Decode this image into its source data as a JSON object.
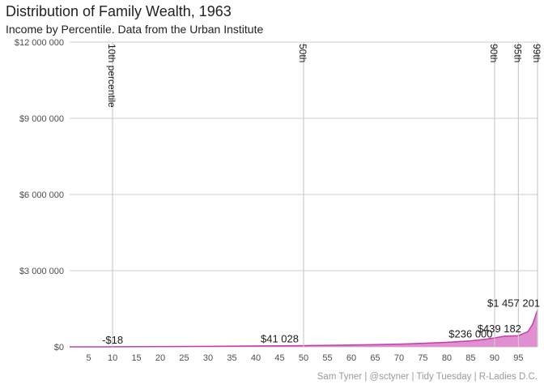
{
  "title": "Distribution of Family Wealth, 1963",
  "subtitle": "Income by Percentile. Data from the Urban Institute",
  "caption": "Sam Tyner | @sctyner | Tidy Tuesday | R-Ladies D.C.",
  "chart_data": {
    "type": "area",
    "x_ticks": [
      5,
      10,
      15,
      20,
      25,
      30,
      35,
      40,
      45,
      50,
      55,
      60,
      65,
      70,
      75,
      80,
      85,
      90,
      95
    ],
    "y_ticks": [
      0,
      3000000,
      6000000,
      9000000,
      12000000
    ],
    "y_tick_labels": [
      "$0",
      "$3 000 000",
      "$6 000 000",
      "$9 000 000",
      "$12 000 000"
    ],
    "xlim": [
      1,
      99
    ],
    "ylim": [
      0,
      12000000
    ],
    "grid": true,
    "colors": {
      "fill": "#e08fd0",
      "line": "#c040b0",
      "grid": "#cccccc"
    },
    "series": [
      {
        "x": [
          1,
          5,
          10,
          15,
          20,
          25,
          30,
          35,
          40,
          45,
          50,
          55,
          60,
          65,
          70,
          75,
          80,
          85,
          88,
          90,
          92,
          95,
          97,
          98,
          99
        ],
        "values": [
          -18,
          0,
          3000,
          6000,
          10000,
          15000,
          21000,
          28000,
          35000,
          41028,
          49000,
          60000,
          72000,
          88000,
          108000,
          140000,
          180000,
          236000,
          300000,
          350000,
          420000,
          439182,
          600000,
          900000,
          1457201
        ]
      }
    ],
    "percentile_markers": [
      {
        "x": 10,
        "label": "10th percentile"
      },
      {
        "x": 50,
        "label": "50th"
      },
      {
        "x": 90,
        "label": "90th"
      },
      {
        "x": 95,
        "label": "95th"
      },
      {
        "x": 99,
        "label": "99th"
      }
    ],
    "data_labels": [
      {
        "x": 10,
        "y": -18,
        "label": "-$18"
      },
      {
        "x": 45,
        "y": 41028,
        "label": "$41 028"
      },
      {
        "x": 85,
        "y": 236000,
        "label": "$236 000"
      },
      {
        "x": 91,
        "y": 439182,
        "label": "$439 182"
      },
      {
        "x": 94,
        "y": 1457201,
        "label": "$1 457 201"
      }
    ]
  }
}
